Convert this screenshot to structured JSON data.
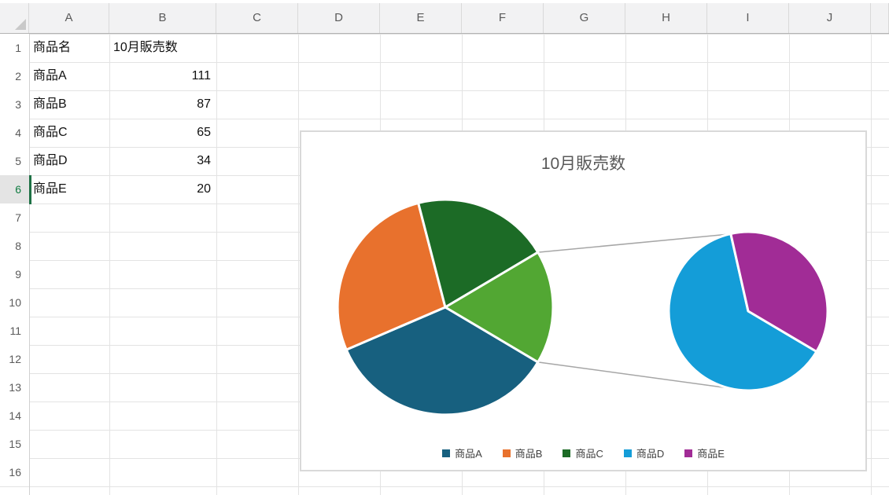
{
  "sheet": {
    "columns": [
      "A",
      "B",
      "C",
      "D",
      "E",
      "F",
      "G",
      "H",
      "I",
      "J"
    ],
    "rows": [
      "1",
      "2",
      "3",
      "4",
      "5",
      "6",
      "7",
      "8",
      "9",
      "10",
      "11",
      "12",
      "13",
      "14",
      "15",
      "16"
    ],
    "active_row": "6",
    "cells": {
      "A1": "商品名",
      "B1": "10月販売数",
      "A2": "商品A",
      "B2": "111",
      "A3": "商品B",
      "B3": "87",
      "A4": "商品C",
      "B4": "65",
      "A5": "商品D",
      "B5": "34",
      "A6": "商品E",
      "B6": "20"
    }
  },
  "chart_data": {
    "type": "pie-of-pie",
    "title": "10月販売数",
    "categories": [
      "商品A",
      "商品B",
      "商品C",
      "商品D",
      "商品E"
    ],
    "values": [
      111,
      87,
      65,
      34,
      20
    ],
    "colors": [
      "#17607F",
      "#E8712D",
      "#1C6B26",
      "#149DD8",
      "#A12C96"
    ],
    "other_color": "#52A733",
    "main_pie_categories": [
      "商品A",
      "商品B",
      "商品C",
      "その他"
    ],
    "secondary_pie_categories": [
      "商品D",
      "商品E"
    ],
    "legend_position": "bottom",
    "connector_color": "#A6A6A6"
  }
}
